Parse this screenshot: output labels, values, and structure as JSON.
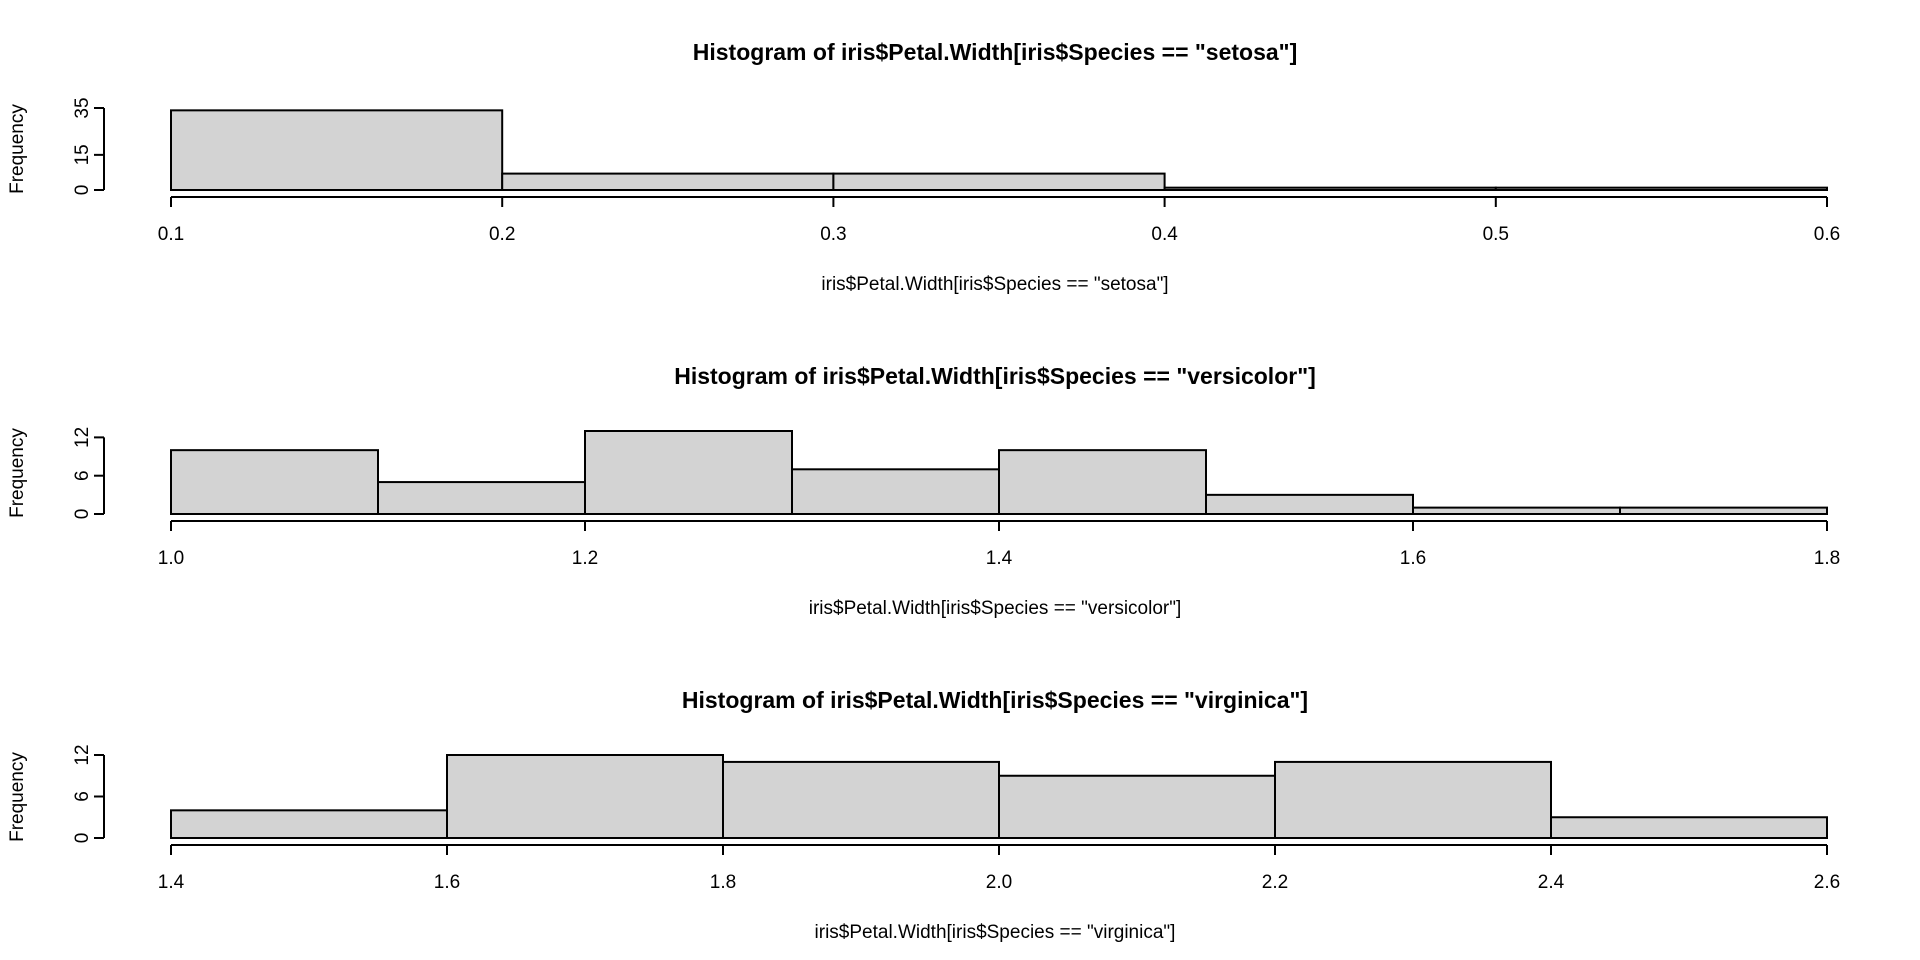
{
  "chart_data": [
    {
      "type": "bar",
      "title": "Histogram of iris$Petal.Width[iris$Species == \"setosa\"]",
      "xlabel": "iris$Petal.Width[iris$Species == \"setosa\"]",
      "ylabel": "Frequency",
      "bins": [
        [
          0.1,
          0.2
        ],
        [
          0.2,
          0.3
        ],
        [
          0.3,
          0.4
        ],
        [
          0.4,
          0.5
        ],
        [
          0.5,
          0.6
        ]
      ],
      "values": [
        34,
        7,
        7,
        1,
        1
      ],
      "xlim": [
        0.1,
        0.6
      ],
      "ylim": [
        0,
        35
      ],
      "xticks": [
        0.1,
        0.2,
        0.3,
        0.4,
        0.5,
        0.6
      ],
      "xtick_labels": [
        "0.1",
        "0.2",
        "0.3",
        "0.4",
        "0.5",
        "0.6"
      ],
      "yticks": [
        0,
        15,
        35
      ],
      "ytick_labels": [
        "0",
        "15",
        "35"
      ],
      "bar_color": "#d3d3d3"
    },
    {
      "type": "bar",
      "title": "Histogram of iris$Petal.Width[iris$Species == \"versicolor\"]",
      "xlabel": "iris$Petal.Width[iris$Species == \"versicolor\"]",
      "ylabel": "Frequency",
      "bins": [
        [
          1.0,
          1.1
        ],
        [
          1.1,
          1.2
        ],
        [
          1.2,
          1.3
        ],
        [
          1.3,
          1.4
        ],
        [
          1.4,
          1.5
        ],
        [
          1.5,
          1.6
        ],
        [
          1.6,
          1.7
        ],
        [
          1.7,
          1.8
        ]
      ],
      "values": [
        10,
        5,
        13,
        7,
        10,
        3,
        1,
        1
      ],
      "xlim": [
        1.0,
        1.8
      ],
      "ylim": [
        0,
        13
      ],
      "xticks": [
        1.0,
        1.2,
        1.4,
        1.6,
        1.8
      ],
      "xtick_labels": [
        "1.0",
        "1.2",
        "1.4",
        "1.6",
        "1.8"
      ],
      "yticks": [
        0,
        6,
        12
      ],
      "ytick_labels": [
        "0",
        "6",
        "12"
      ],
      "bar_color": "#d3d3d3"
    },
    {
      "type": "bar",
      "title": "Histogram of iris$Petal.Width[iris$Species == \"virginica\"]",
      "xlabel": "iris$Petal.Width[iris$Species == \"virginica\"]",
      "ylabel": "Frequency",
      "bins": [
        [
          1.4,
          1.6
        ],
        [
          1.6,
          1.8
        ],
        [
          1.8,
          2.0
        ],
        [
          2.0,
          2.2
        ],
        [
          2.2,
          2.4
        ],
        [
          2.4,
          2.6
        ]
      ],
      "values": [
        4,
        12,
        11,
        9,
        11,
        3
      ],
      "xlim": [
        1.4,
        2.6
      ],
      "ylim": [
        0,
        12
      ],
      "xticks": [
        1.4,
        1.6,
        1.8,
        2.0,
        2.2,
        2.4,
        2.6
      ],
      "xtick_labels": [
        "1.4",
        "1.6",
        "1.8",
        "2.0",
        "2.2",
        "2.4",
        "2.6"
      ],
      "yticks": [
        0,
        6,
        12
      ],
      "ytick_labels": [
        "0",
        "6",
        "12"
      ],
      "bar_color": "#d3d3d3"
    }
  ]
}
